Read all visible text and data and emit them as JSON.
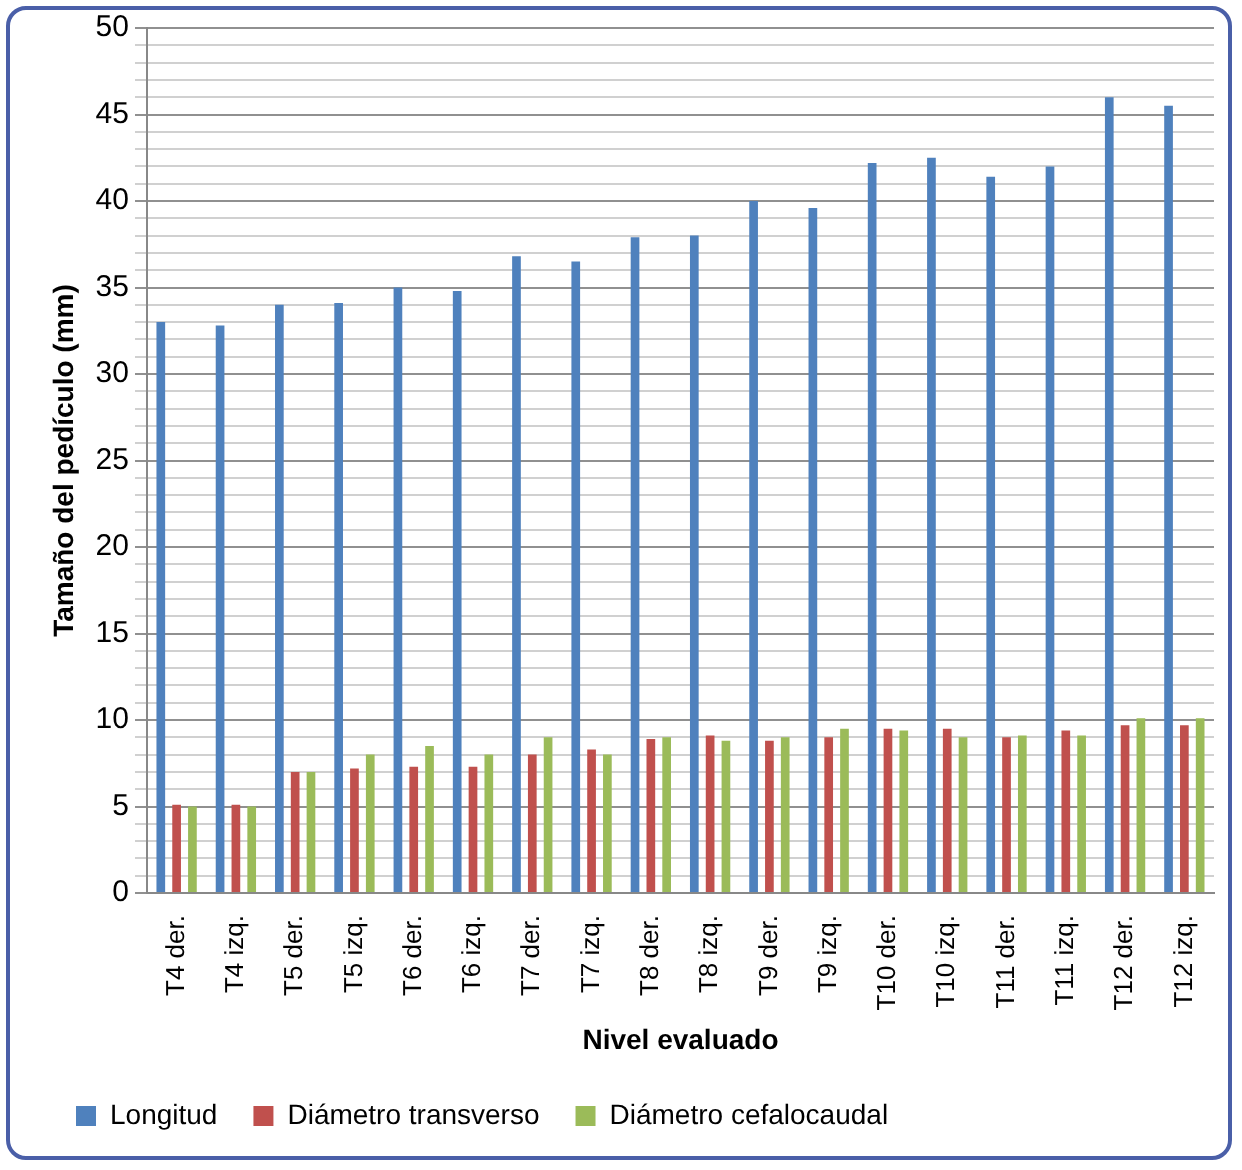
{
  "chart_data": {
    "type": "bar",
    "xlabel": "Nivel evaluado",
    "ylabel": "Tamaño del pedículo (mm)",
    "categories": [
      "T4 der.",
      "T4 izq.",
      "T5 der.",
      "T5 izq.",
      "T6 der.",
      "T6 izq.",
      "T7 der.",
      "T7 izq.",
      "T8 der.",
      "T8 izq.",
      "T9 der.",
      "T9 izq.",
      "T10 der.",
      "T10 izq.",
      "T11 der.",
      "T11 izq.",
      "T12 der.",
      "T12 izq."
    ],
    "series": [
      {
        "name": "Longitud",
        "color": "#4f81bd",
        "values": [
          33,
          32.8,
          34,
          34.1,
          35,
          34.8,
          36.8,
          36.5,
          37.9,
          38,
          40,
          39.6,
          42.2,
          42.5,
          41.4,
          42,
          46,
          45.5
        ]
      },
      {
        "name": "Diámetro transverso",
        "color": "#c0504d",
        "values": [
          5.1,
          5.1,
          7,
          7.2,
          7.3,
          7.3,
          8,
          8.3,
          8.9,
          9.1,
          8.8,
          9,
          9.5,
          9.5,
          9,
          9.4,
          9.7,
          9.7
        ]
      },
      {
        "name": "Diámetro cefalocaudal",
        "color": "#9bbb59",
        "values": [
          5,
          5,
          7,
          8,
          8.5,
          8,
          9,
          8,
          9,
          8.8,
          9,
          9.5,
          9.4,
          9,
          9.1,
          9.1,
          10.1,
          10.1
        ]
      }
    ],
    "ylim": [
      0,
      50
    ],
    "yticks": [
      0,
      {
        "value": 1,
        "label": null
      },
      {
        "value": 2,
        "label": null
      },
      {
        "value": 3,
        "label": null
      },
      {
        "value": 4,
        "label": null
      },
      5,
      {
        "value": 6,
        "label": null
      },
      {
        "value": 7,
        "label": null
      },
      {
        "value": 8,
        "label": null
      },
      {
        "value": 9,
        "label": null
      },
      10,
      {
        "value": 11,
        "label": null
      },
      {
        "value": 12,
        "label": null
      },
      {
        "value": 13,
        "label": null
      },
      {
        "value": 14,
        "label": null
      },
      15,
      {
        "value": 16,
        "label": null
      },
      {
        "value": 17,
        "label": null
      },
      {
        "value": 18,
        "label": null
      },
      {
        "value": 19,
        "label": null
      },
      20,
      {
        "value": 21,
        "label": null
      },
      {
        "value": 22,
        "label": null
      },
      {
        "value": 23,
        "label": null
      },
      {
        "value": 24,
        "label": null
      },
      25,
      {
        "value": 26,
        "label": null
      },
      {
        "value": 27,
        "label": null
      },
      {
        "value": 28,
        "label": null
      },
      {
        "value": 29,
        "label": null
      },
      30,
      {
        "value": 31,
        "label": null
      },
      {
        "value": 32,
        "label": null
      },
      {
        "value": 33,
        "label": null
      },
      {
        "value": 34,
        "label": null
      },
      35,
      {
        "value": 36,
        "label": null
      },
      {
        "value": 37,
        "label": null
      },
      {
        "value": 38,
        "label": null
      },
      {
        "value": 39,
        "label": null
      },
      40,
      {
        "value": 41,
        "label": null
      },
      {
        "value": 42,
        "label": null
      },
      {
        "value": 43,
        "label": null
      },
      {
        "value": 44,
        "label": null
      },
      45,
      {
        "value": 46,
        "label": null
      },
      {
        "value": 47,
        "label": null
      },
      {
        "value": 48,
        "label": null
      },
      {
        "value": 49,
        "label": null
      },
      50
    ],
    "grid": "y",
    "legend": "bottom"
  }
}
